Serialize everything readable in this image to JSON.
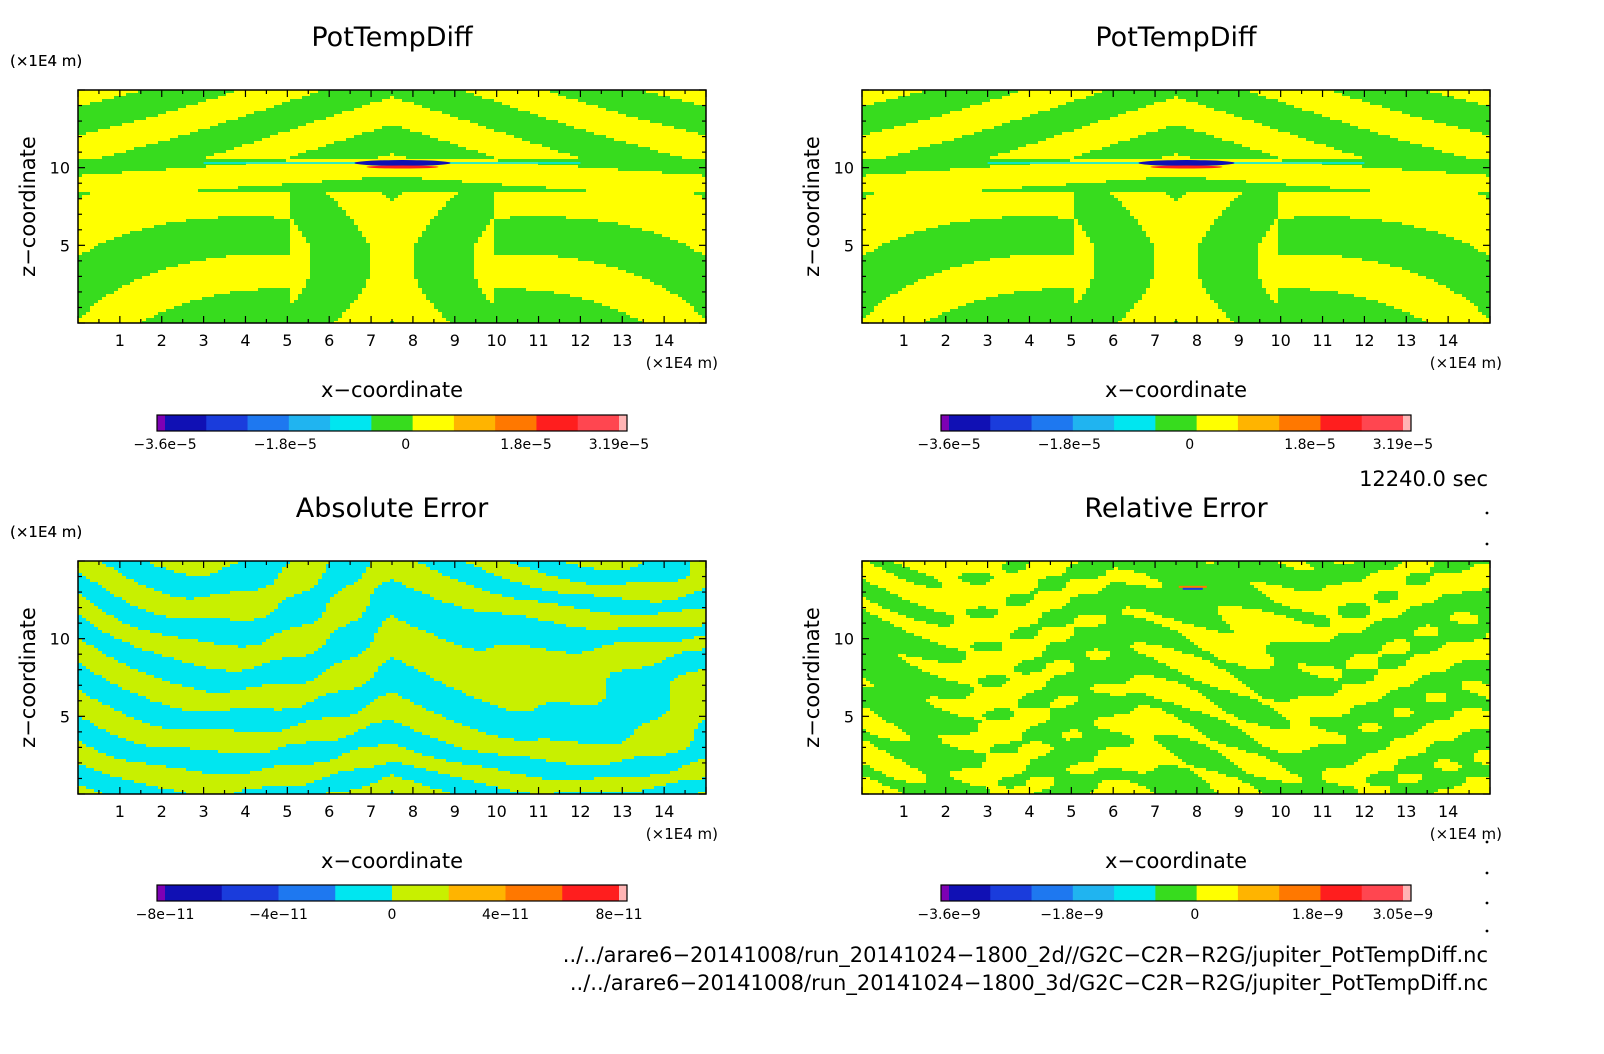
{
  "panels": [
    {
      "title": "PotTempDiff",
      "xlabel": "x−coordinate",
      "ylabel": "z−coordinate",
      "x_unit": "(×1E4 m)",
      "y_unit": "(×1E4 m)",
      "pattern": "field",
      "colorbar": {
        "colors": [
          "#7d00b4",
          "#1010b4",
          "#1a3cdc",
          "#1e78f0",
          "#20b4f0",
          "#00e6f0",
          "#37dc1e",
          "#ffff00",
          "#ffb400",
          "#ff7800",
          "#ff1e1e",
          "#ff4650",
          "#ffb4b4"
        ],
        "tick_labels": [
          "−3.6e−5",
          "−1.8e−5",
          "0",
          "1.8e−5",
          "3.19e−5"
        ]
      }
    },
    {
      "title": "PotTempDiff",
      "xlabel": "x−coordinate",
      "ylabel": "z−coordinate",
      "x_unit": "(×1E4 m)",
      "y_unit": "(×1E4 m)",
      "pattern": "field",
      "colorbar": {
        "colors": [
          "#7d00b4",
          "#1010b4",
          "#1a3cdc",
          "#1e78f0",
          "#20b4f0",
          "#00e6f0",
          "#37dc1e",
          "#ffff00",
          "#ffb400",
          "#ff7800",
          "#ff1e1e",
          "#ff4650",
          "#ffb4b4"
        ],
        "tick_labels": [
          "−3.6e−5",
          "−1.8e−5",
          "0",
          "1.8e−5",
          "3.19e−5"
        ]
      }
    },
    {
      "title": "Absolute Error",
      "xlabel": "x−coordinate",
      "ylabel": "z−coordinate",
      "x_unit": "(×1E4 m)",
      "y_unit": "(×1E4 m)",
      "pattern": "abserr",
      "colorbar": {
        "colors": [
          "#7d00b4",
          "#1010b4",
          "#1a3cdc",
          "#1e78f0",
          "#00e6f0",
          "#c8f000",
          "#ffb400",
          "#ff7800",
          "#ff1e1e",
          "#ffb4b4"
        ],
        "tick_labels": [
          "−8e−11",
          "−4e−11",
          "0",
          "4e−11",
          "8e−11"
        ]
      }
    },
    {
      "title": "Relative Error",
      "xlabel": "x−coordinate",
      "ylabel": "z−coordinate",
      "x_unit": "(×1E4 m)",
      "y_unit": "(×1E4 m)",
      "pattern": "relerr",
      "colorbar": {
        "colors": [
          "#7d00b4",
          "#1010b4",
          "#1a3cdc",
          "#1e78f0",
          "#20b4f0",
          "#00e6f0",
          "#37dc1e",
          "#ffff00",
          "#ffb400",
          "#ff7800",
          "#ff1e1e",
          "#ff4650",
          "#ffb4b4"
        ],
        "tick_labels": [
          "−3.6e−9",
          "−1.8e−9",
          "0",
          "1.8e−9",
          "3.05e−9"
        ]
      }
    }
  ],
  "time_label": "12240.0 sec",
  "file_paths": [
    "../../arare6−20141008/run_20141024−1800_2d//G2C−C2R−R2G/jupiter_PotTempDiff.nc",
    "../../arare6−20141008/run_20141024−1800_3d/G2C−C2R−R2G/jupiter_PotTempDiff.nc"
  ],
  "chart_data": [
    {
      "type": "heatmap",
      "title": "PotTempDiff",
      "xlabel": "x−coordinate",
      "ylabel": "z−coordinate",
      "xlim": [
        0,
        15
      ],
      "ylim": [
        0,
        15
      ],
      "xticks": [
        1,
        2,
        3,
        4,
        5,
        6,
        7,
        8,
        9,
        10,
        11,
        12,
        13,
        14
      ],
      "yticks": [
        5,
        10
      ],
      "colorbar_ticks": [
        -3.6e-05,
        -1.8e-05,
        0,
        1.8e-05,
        3.19e-05
      ]
    },
    {
      "type": "heatmap",
      "title": "PotTempDiff",
      "xlabel": "x−coordinate",
      "ylabel": "z−coordinate",
      "xlim": [
        0,
        15
      ],
      "ylim": [
        0,
        15
      ],
      "xticks": [
        1,
        2,
        3,
        4,
        5,
        6,
        7,
        8,
        9,
        10,
        11,
        12,
        13,
        14
      ],
      "yticks": [
        5,
        10
      ],
      "colorbar_ticks": [
        -3.6e-05,
        -1.8e-05,
        0,
        1.8e-05,
        3.19e-05
      ]
    },
    {
      "type": "heatmap",
      "title": "Absolute Error",
      "xlabel": "x−coordinate",
      "ylabel": "z−coordinate",
      "xlim": [
        0,
        15
      ],
      "ylim": [
        0,
        15
      ],
      "xticks": [
        1,
        2,
        3,
        4,
        5,
        6,
        7,
        8,
        9,
        10,
        11,
        12,
        13,
        14
      ],
      "yticks": [
        5,
        10
      ],
      "colorbar_ticks": [
        -8e-11,
        -4e-11,
        0,
        4e-11,
        8e-11
      ]
    },
    {
      "type": "heatmap",
      "title": "Relative Error",
      "xlabel": "x−coordinate",
      "ylabel": "z−coordinate",
      "xlim": [
        0,
        15
      ],
      "ylim": [
        0,
        15
      ],
      "xticks": [
        1,
        2,
        3,
        4,
        5,
        6,
        7,
        8,
        9,
        10,
        11,
        12,
        13,
        14
      ],
      "yticks": [
        5,
        10
      ],
      "colorbar_ticks": [
        -3.6e-09,
        -1.8e-09,
        0,
        1.8e-09,
        3.05e-09
      ]
    }
  ]
}
